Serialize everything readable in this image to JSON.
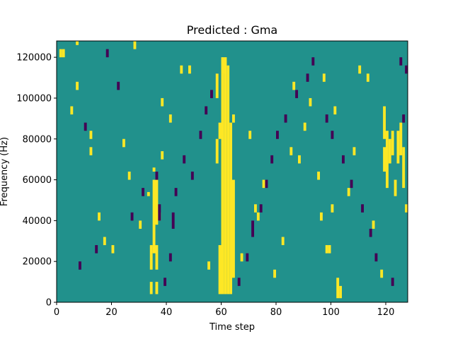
{
  "chart_data": {
    "type": "heatmap",
    "title": "Predicted : Gma",
    "xlabel": "Time step",
    "ylabel": "Frequency (Hz)",
    "xlim": [
      0,
      128
    ],
    "ylim": [
      0,
      128000
    ],
    "x_ticks": [
      0,
      20,
      40,
      60,
      80,
      100,
      120
    ],
    "x_tick_labels": [
      "0",
      "20",
      "40",
      "60",
      "80",
      "100",
      "120"
    ],
    "y_ticks": [
      0,
      20000,
      40000,
      60000,
      80000,
      100000,
      120000
    ],
    "y_tick_labels": [
      "0",
      "20000",
      "40000",
      "60000",
      "80000",
      "100000",
      "120000"
    ],
    "rows": 64,
    "cols": 128,
    "colormap": "viridis",
    "background_value": 0,
    "value_colors": {
      "-1": "#440154",
      "0": "#21918c",
      "1": "#fde725"
    },
    "cells_positive": [
      [
        34,
        2,
        5
      ],
      [
        34,
        8,
        14
      ],
      [
        35,
        12,
        30
      ],
      [
        36,
        2,
        5
      ],
      [
        36,
        8,
        14
      ],
      [
        36,
        19,
        30
      ],
      [
        33,
        26,
        27
      ],
      [
        37,
        20,
        22
      ],
      [
        38,
        35,
        37
      ],
      [
        35,
        32,
        33
      ],
      [
        59,
        2,
        14
      ],
      [
        60,
        2,
        60
      ],
      [
        61,
        2,
        60
      ],
      [
        62,
        2,
        58
      ],
      [
        63,
        2,
        44
      ],
      [
        64,
        6,
        30
      ],
      [
        58,
        34,
        40
      ],
      [
        59,
        40,
        44
      ],
      [
        58,
        50,
        56
      ],
      [
        60,
        56,
        60
      ],
      [
        61,
        58,
        60
      ],
      [
        102,
        1,
        6
      ],
      [
        103,
        1,
        4
      ],
      [
        98,
        12,
        14
      ],
      [
        99,
        12,
        14
      ],
      [
        96,
        20,
        22
      ],
      [
        100,
        22,
        24
      ],
      [
        119,
        32,
        38
      ],
      [
        120,
        28,
        42
      ],
      [
        121,
        34,
        40
      ],
      [
        122,
        36,
        42
      ],
      [
        123,
        26,
        30
      ],
      [
        124,
        34,
        42
      ],
      [
        125,
        36,
        44
      ],
      [
        126,
        28,
        38
      ],
      [
        127,
        22,
        24
      ],
      [
        119,
        40,
        48
      ],
      [
        12,
        40,
        42
      ],
      [
        12,
        36,
        38
      ],
      [
        2,
        60,
        62
      ],
      [
        1,
        60,
        62
      ],
      [
        7,
        52,
        54
      ],
      [
        24,
        38,
        40
      ],
      [
        30,
        18,
        20
      ],
      [
        26,
        30,
        32
      ],
      [
        15,
        20,
        22
      ],
      [
        17,
        14,
        16
      ],
      [
        20,
        12,
        14
      ],
      [
        5,
        46,
        48
      ],
      [
        7,
        64,
        64
      ],
      [
        38,
        48,
        50
      ],
      [
        41,
        44,
        46
      ],
      [
        28,
        62,
        64
      ],
      [
        45,
        56,
        58
      ],
      [
        48,
        56,
        58
      ],
      [
        55,
        8,
        10
      ],
      [
        72,
        22,
        24
      ],
      [
        75,
        28,
        30
      ],
      [
        82,
        14,
        16
      ],
      [
        85,
        36,
        38
      ],
      [
        88,
        34,
        36
      ],
      [
        95,
        30,
        32
      ],
      [
        97,
        54,
        56
      ],
      [
        110,
        56,
        58
      ],
      [
        113,
        54,
        56
      ],
      [
        118,
        6,
        8
      ],
      [
        115,
        18,
        20
      ],
      [
        106,
        26,
        28
      ],
      [
        86,
        52,
        54
      ],
      [
        90,
        42,
        44
      ],
      [
        92,
        48,
        50
      ],
      [
        101,
        46,
        48
      ],
      [
        108,
        36,
        38
      ],
      [
        64,
        44,
        46
      ],
      [
        67,
        10,
        12
      ],
      [
        70,
        40,
        42
      ],
      [
        73,
        20,
        22
      ],
      [
        79,
        6,
        8
      ]
    ],
    "cells_negative": [
      [
        37,
        20,
        24
      ],
      [
        36,
        30,
        32
      ],
      [
        41,
        10,
        12
      ],
      [
        42,
        18,
        22
      ],
      [
        43,
        26,
        28
      ],
      [
        46,
        34,
        36
      ],
      [
        49,
        30,
        32
      ],
      [
        52,
        40,
        42
      ],
      [
        54,
        46,
        48
      ],
      [
        56,
        50,
        52
      ],
      [
        66,
        4,
        6
      ],
      [
        69,
        10,
        12
      ],
      [
        71,
        16,
        20
      ],
      [
        74,
        22,
        24
      ],
      [
        76,
        28,
        30
      ],
      [
        78,
        34,
        36
      ],
      [
        80,
        40,
        42
      ],
      [
        83,
        44,
        46
      ],
      [
        87,
        50,
        52
      ],
      [
        91,
        54,
        56
      ],
      [
        93,
        58,
        60
      ],
      [
        98,
        44,
        46
      ],
      [
        100,
        40,
        42
      ],
      [
        104,
        34,
        36
      ],
      [
        107,
        28,
        30
      ],
      [
        111,
        22,
        24
      ],
      [
        114,
        16,
        18
      ],
      [
        116,
        10,
        12
      ],
      [
        122,
        4,
        6
      ],
      [
        126,
        44,
        46
      ],
      [
        127,
        56,
        58
      ],
      [
        125,
        58,
        60
      ],
      [
        18,
        60,
        62
      ],
      [
        22,
        52,
        54
      ],
      [
        10,
        42,
        44
      ],
      [
        8,
        8,
        10
      ],
      [
        14,
        12,
        14
      ],
      [
        27,
        20,
        22
      ],
      [
        31,
        26,
        28
      ],
      [
        39,
        4,
        6
      ]
    ]
  }
}
